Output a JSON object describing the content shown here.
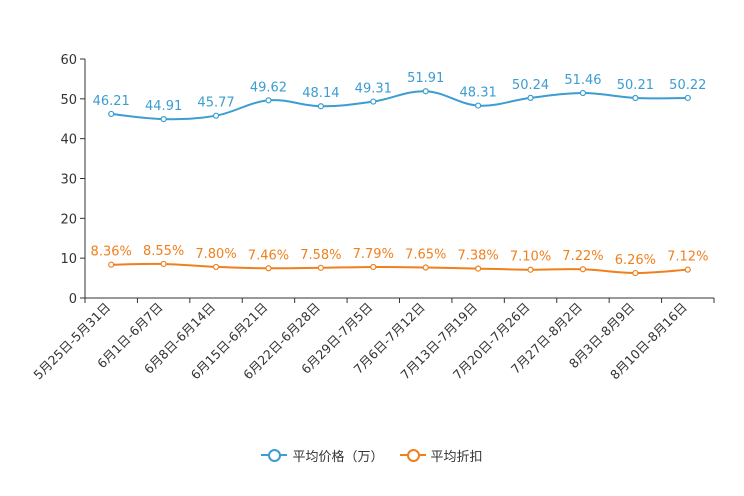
{
  "chart_data": {
    "type": "line",
    "title": "",
    "xlabel": "",
    "ylabel": "",
    "ylim": [
      0,
      60
    ],
    "yticks": [
      0,
      10,
      20,
      30,
      40,
      50,
      60
    ],
    "grid": false,
    "legend_position": "bottom",
    "categories": [
      "5月25日-5月31日",
      "6月1日-6月7日",
      "6月8日-6月14日",
      "6月15日-6月21日",
      "6月22日-6月28日",
      "6月29日-7月5日",
      "7月6日-7月12日",
      "7月13日-7月19日",
      "7月20日-7月26日",
      "7月27日-8月2日",
      "8月3日-8月9日",
      "8月10日-8月16日"
    ],
    "series": [
      {
        "name": "平均价格（万）",
        "color": "#3b9dd1",
        "values": [
          46.21,
          44.91,
          45.77,
          49.62,
          48.14,
          49.31,
          51.91,
          48.31,
          50.24,
          51.46,
          50.21,
          50.22
        ],
        "labels": [
          "46.21",
          "44.91",
          "45.77",
          "49.62",
          "48.14",
          "49.31",
          "51.91",
          "48.31",
          "50.24",
          "51.46",
          "50.21",
          "50.22"
        ]
      },
      {
        "name": "平均折扣",
        "color": "#f0801e",
        "values": [
          8.36,
          8.55,
          7.8,
          7.46,
          7.58,
          7.79,
          7.65,
          7.38,
          7.1,
          7.22,
          6.26,
          7.12
        ],
        "labels": [
          "8.36%",
          "8.55%",
          "7.80%",
          "7.46%",
          "7.58%",
          "7.79%",
          "7.65%",
          "7.38%",
          "7.10%",
          "7.22%",
          "6.26%",
          "7.12%"
        ]
      }
    ]
  }
}
